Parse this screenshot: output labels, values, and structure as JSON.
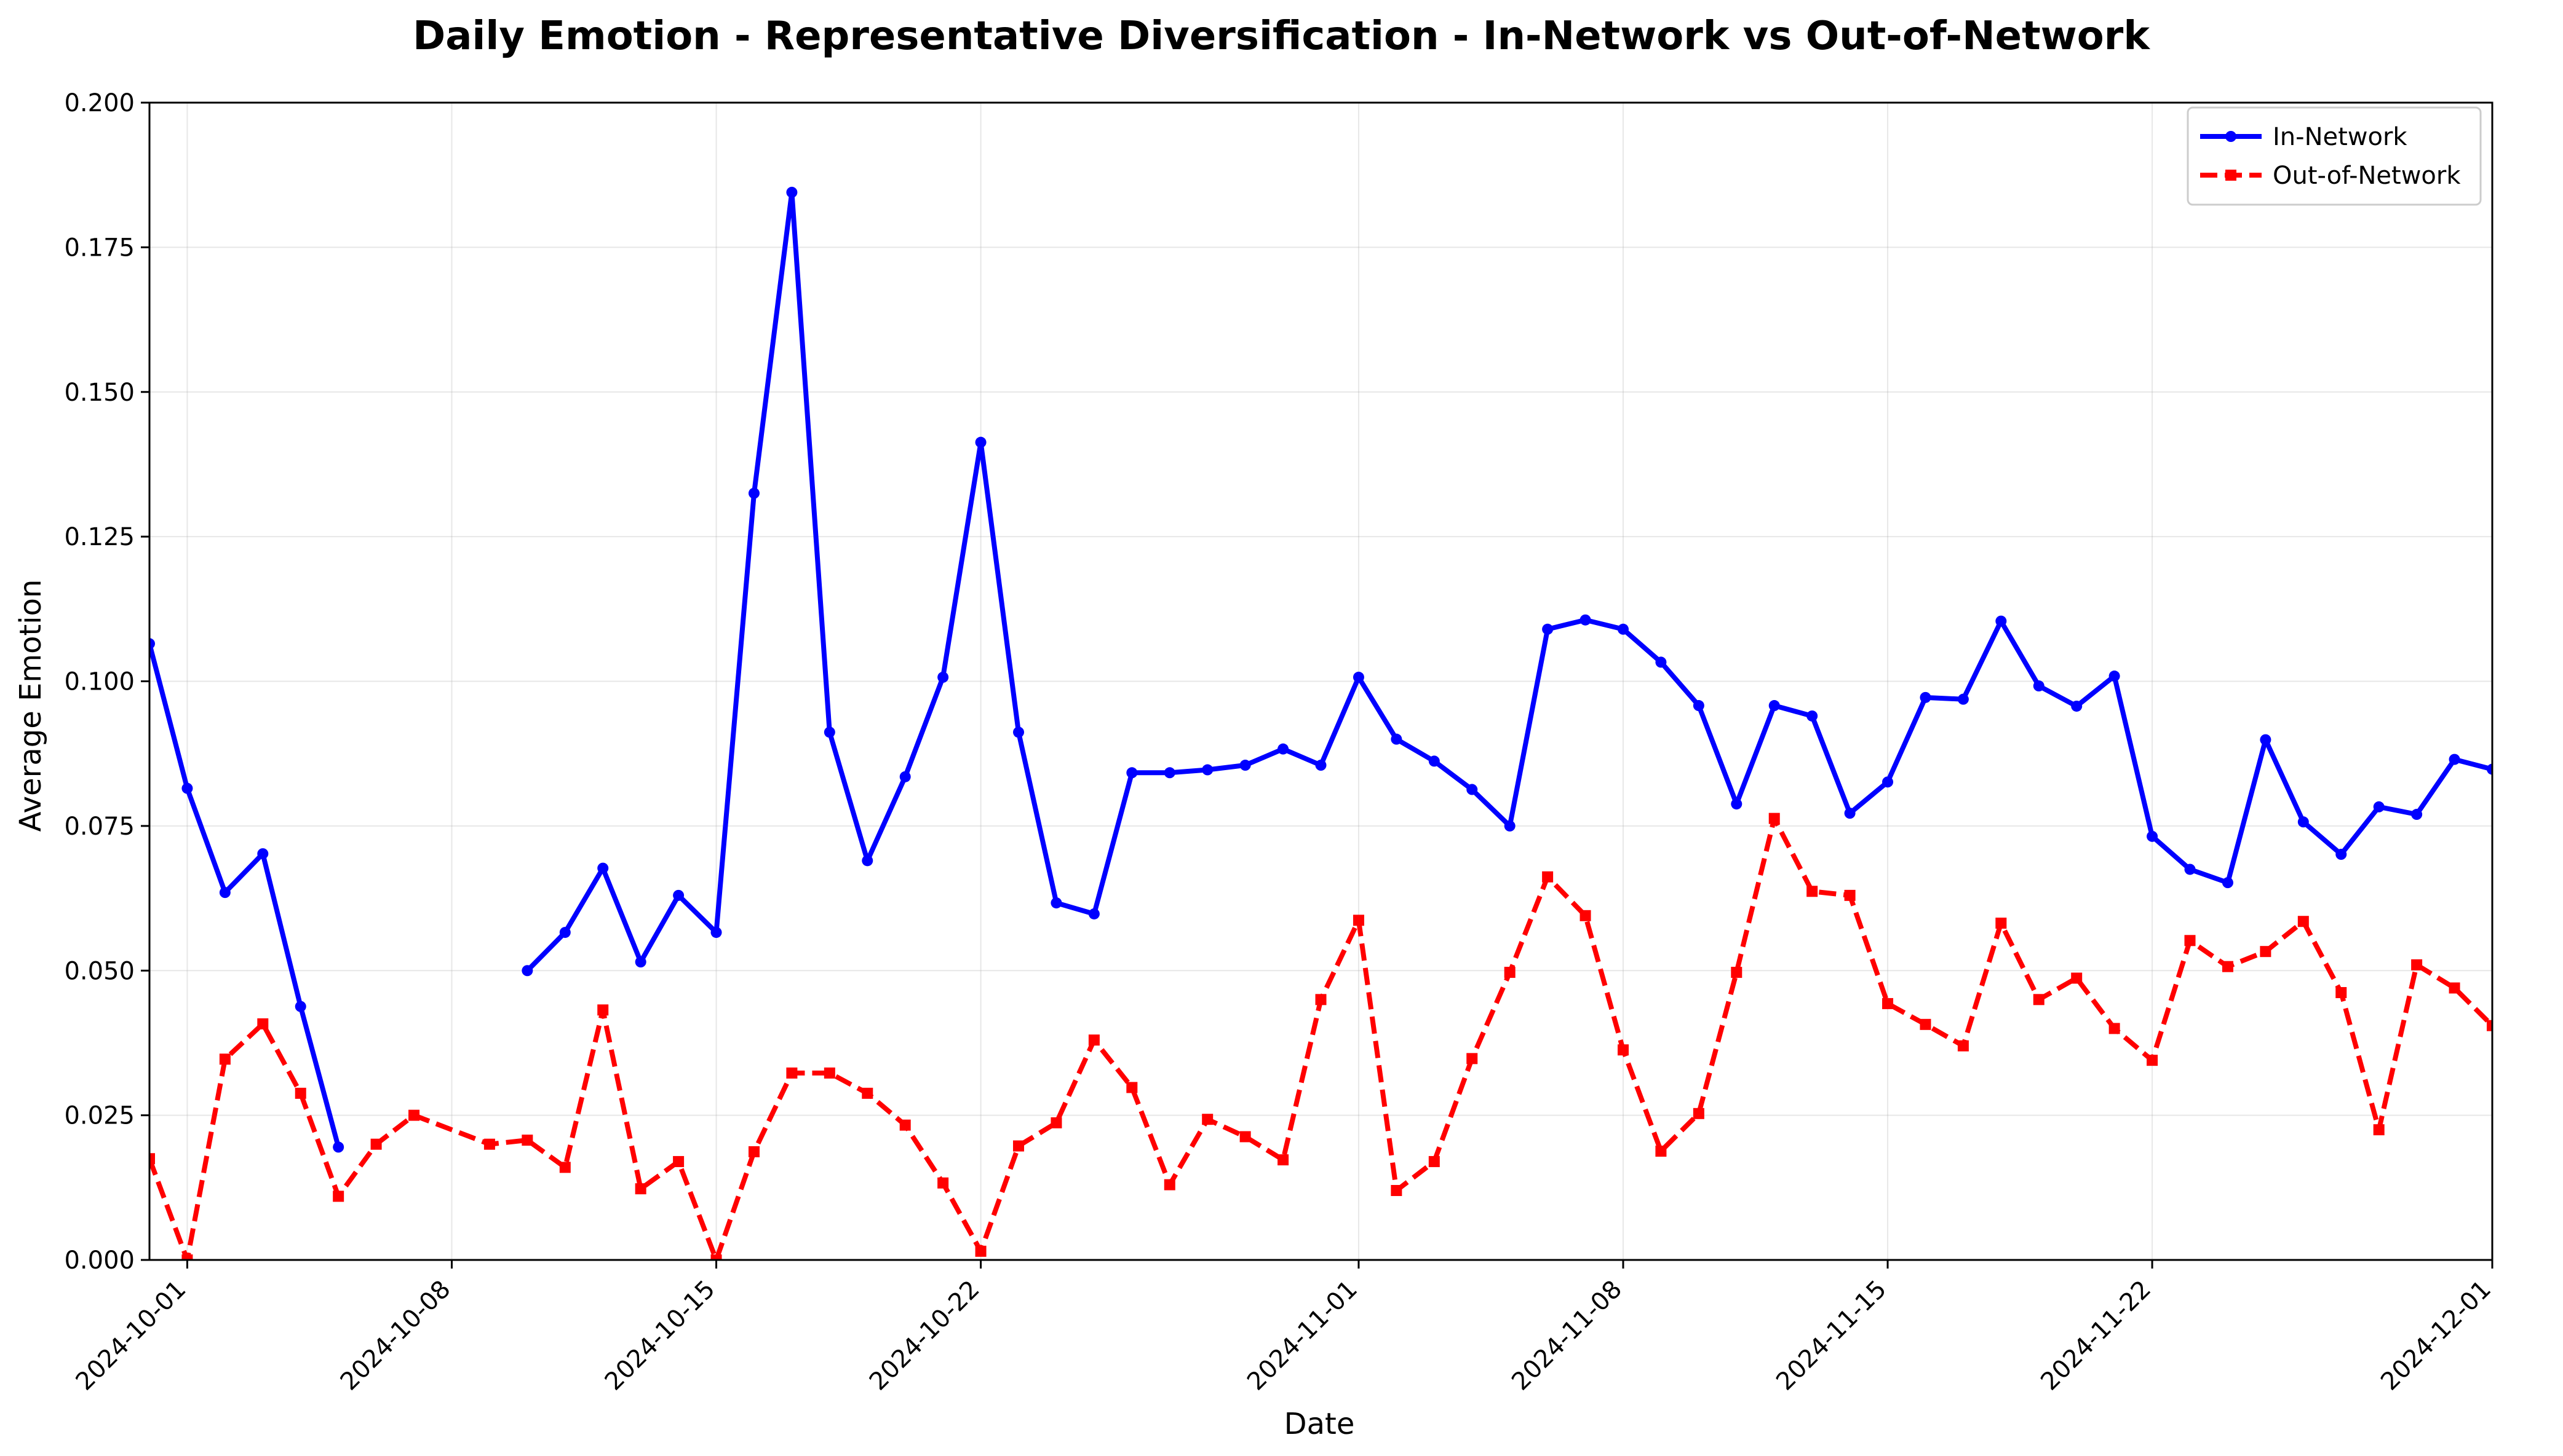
{
  "chart_data": {
    "type": "line",
    "title": "Daily Emotion - Representative Diversification - In-Network vs Out-of-Network",
    "xlabel": "Date",
    "ylabel": "Average Emotion",
    "xlim": [
      "2024-09-30",
      "2024-12-01"
    ],
    "ylim": [
      0,
      0.2
    ],
    "yticks": [
      0.0,
      0.025,
      0.05,
      0.075,
      0.1,
      0.125,
      0.15,
      0.175,
      0.2
    ],
    "ytick_labels": [
      "0.000",
      "0.025",
      "0.050",
      "0.075",
      "0.100",
      "0.125",
      "0.150",
      "0.175",
      "0.200"
    ],
    "xticks": [
      "2024-10-01",
      "2024-10-08",
      "2024-10-15",
      "2024-10-22",
      "2024-11-01",
      "2024-11-08",
      "2024-11-15",
      "2024-11-22",
      "2024-12-01"
    ],
    "grid": true,
    "legend_position": "top-right",
    "series": [
      {
        "name": "In-Network",
        "color": "#0000ff",
        "style": "solid",
        "marker": "circle",
        "points": [
          [
            "2024-09-30",
            0.1065
          ],
          [
            "2024-10-01",
            0.0815
          ],
          [
            "2024-10-02",
            0.0635
          ],
          [
            "2024-10-03",
            0.0702
          ],
          [
            "2024-10-04",
            0.0438
          ],
          [
            "2024-10-05",
            0.0195
          ],
          [
            "2024-10-10",
            0.05
          ],
          [
            "2024-10-11",
            0.0566
          ],
          [
            "2024-10-12",
            0.0677
          ],
          [
            "2024-10-13",
            0.0515
          ],
          [
            "2024-10-14",
            0.063
          ],
          [
            "2024-10-15",
            0.0566
          ],
          [
            "2024-10-16",
            0.1325
          ],
          [
            "2024-10-17",
            0.1845
          ],
          [
            "2024-10-18",
            0.0912
          ],
          [
            "2024-10-19",
            0.069
          ],
          [
            "2024-10-20",
            0.0835
          ],
          [
            "2024-10-21",
            0.1007
          ],
          [
            "2024-10-22",
            0.1413
          ],
          [
            "2024-10-23",
            0.0912
          ],
          [
            "2024-10-24",
            0.0617
          ],
          [
            "2024-10-25",
            0.0598
          ],
          [
            "2024-10-26",
            0.0842
          ],
          [
            "2024-10-27",
            0.0842
          ],
          [
            "2024-10-28",
            0.0847
          ],
          [
            "2024-10-29",
            0.0855
          ],
          [
            "2024-10-30",
            0.0883
          ],
          [
            "2024-10-31",
            0.0855
          ],
          [
            "2024-11-01",
            0.1007
          ],
          [
            "2024-11-02",
            0.09
          ],
          [
            "2024-11-03",
            0.0862
          ],
          [
            "2024-11-04",
            0.0813
          ],
          [
            "2024-11-05",
            0.075
          ],
          [
            "2024-11-06",
            0.109
          ],
          [
            "2024-11-07",
            0.1106
          ],
          [
            "2024-11-08",
            0.109
          ],
          [
            "2024-11-09",
            0.1033
          ],
          [
            "2024-11-10",
            0.0958
          ],
          [
            "2024-11-11",
            0.0788
          ],
          [
            "2024-11-12",
            0.0958
          ],
          [
            "2024-11-13",
            0.094
          ],
          [
            "2024-11-14",
            0.0772
          ],
          [
            "2024-11-15",
            0.0826
          ],
          [
            "2024-11-16",
            0.0972
          ],
          [
            "2024-11-17",
            0.0969
          ],
          [
            "2024-11-18",
            0.1104
          ],
          [
            "2024-11-19",
            0.0992
          ],
          [
            "2024-11-20",
            0.0957
          ],
          [
            "2024-11-21",
            0.1009
          ],
          [
            "2024-11-22",
            0.0732
          ],
          [
            "2024-11-23",
            0.0675
          ],
          [
            "2024-11-24",
            0.0652
          ],
          [
            "2024-11-25",
            0.0899
          ],
          [
            "2024-11-26",
            0.0757
          ],
          [
            "2024-11-27",
            0.0701
          ],
          [
            "2024-11-28",
            0.0783
          ],
          [
            "2024-11-29",
            0.077
          ],
          [
            "2024-11-30",
            0.0865
          ],
          [
            "2024-12-01",
            0.0848
          ]
        ]
      },
      {
        "name": "Out-of-Network",
        "color": "#ff0000",
        "style": "dashed",
        "marker": "square",
        "points": [
          [
            "2024-09-30",
            0.0175
          ],
          [
            "2024-10-01",
            0.0
          ],
          [
            "2024-10-02",
            0.0347
          ],
          [
            "2024-10-03",
            0.0408
          ],
          [
            "2024-10-04",
            0.0288
          ],
          [
            "2024-10-05",
            0.011
          ],
          [
            "2024-10-06",
            0.02
          ],
          [
            "2024-10-07",
            0.025
          ],
          [
            "2024-10-09",
            0.02
          ],
          [
            "2024-10-10",
            0.0207
          ],
          [
            "2024-10-11",
            0.016
          ],
          [
            "2024-10-12",
            0.0432
          ],
          [
            "2024-10-13",
            0.0123
          ],
          [
            "2024-10-14",
            0.017
          ],
          [
            "2024-10-15",
            0.0
          ],
          [
            "2024-10-16",
            0.0187
          ],
          [
            "2024-10-17",
            0.0323
          ],
          [
            "2024-10-18",
            0.0323
          ],
          [
            "2024-10-19",
            0.0288
          ],
          [
            "2024-10-20",
            0.0233
          ],
          [
            "2024-10-21",
            0.0133
          ],
          [
            "2024-10-22",
            0.0015
          ],
          [
            "2024-10-23",
            0.0197
          ],
          [
            "2024-10-24",
            0.0237
          ],
          [
            "2024-10-25",
            0.038
          ],
          [
            "2024-10-26",
            0.0298
          ],
          [
            "2024-10-27",
            0.013
          ],
          [
            "2024-10-28",
            0.0243
          ],
          [
            "2024-10-29",
            0.0213
          ],
          [
            "2024-10-30",
            0.0173
          ],
          [
            "2024-10-31",
            0.045
          ],
          [
            "2024-11-01",
            0.0587
          ],
          [
            "2024-11-02",
            0.012
          ],
          [
            "2024-11-03",
            0.017
          ],
          [
            "2024-11-04",
            0.0348
          ],
          [
            "2024-11-05",
            0.0497
          ],
          [
            "2024-11-06",
            0.0662
          ],
          [
            "2024-11-07",
            0.0595
          ],
          [
            "2024-11-08",
            0.0363
          ],
          [
            "2024-11-09",
            0.0188
          ],
          [
            "2024-11-10",
            0.0253
          ],
          [
            "2024-11-11",
            0.0497
          ],
          [
            "2024-11-12",
            0.0763
          ],
          [
            "2024-11-13",
            0.0637
          ],
          [
            "2024-11-14",
            0.063
          ],
          [
            "2024-11-15",
            0.0443
          ],
          [
            "2024-11-16",
            0.0407
          ],
          [
            "2024-11-17",
            0.037
          ],
          [
            "2024-11-18",
            0.0582
          ],
          [
            "2024-11-19",
            0.045
          ],
          [
            "2024-11-20",
            0.0487
          ],
          [
            "2024-11-21",
            0.04
          ],
          [
            "2024-11-22",
            0.0345
          ],
          [
            "2024-11-23",
            0.0552
          ],
          [
            "2024-11-24",
            0.0507
          ],
          [
            "2024-11-25",
            0.0533
          ],
          [
            "2024-11-26",
            0.0585
          ],
          [
            "2024-11-27",
            0.0462
          ],
          [
            "2024-11-28",
            0.0225
          ],
          [
            "2024-11-29",
            0.051
          ],
          [
            "2024-11-30",
            0.047
          ],
          [
            "2024-12-01",
            0.0405
          ]
        ]
      }
    ]
  }
}
